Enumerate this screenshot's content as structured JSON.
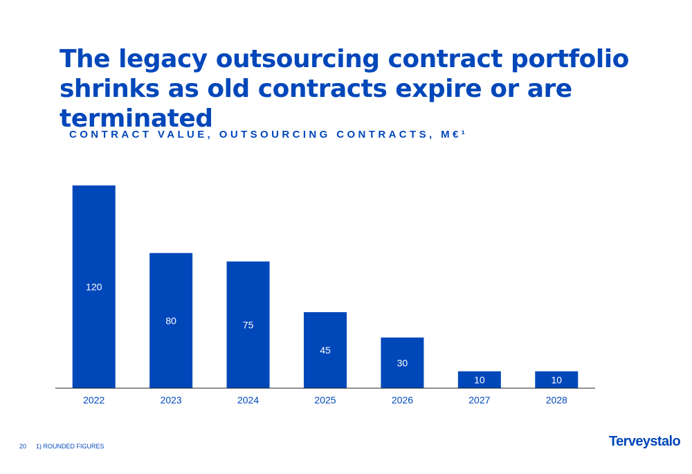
{
  "slide": {
    "title": "The legacy outsourcing contract portfolio shrinks as old contracts expire or are terminated",
    "subtitle": "CONTRACT VALUE, OUTSOURCING CONTRACTS, M€¹",
    "page_number": "20",
    "footnote": "1) ROUNDED FIGURES",
    "brand": "Terveystalo"
  },
  "colors": {
    "bar": "#0047ba",
    "text": "#0047ba",
    "bar_label": "#ffffff",
    "axis_label": "#0047ba",
    "axis_line": "#222222"
  },
  "chart_data": {
    "type": "bar",
    "title": "CONTRACT VALUE, OUTSOURCING CONTRACTS, M€¹",
    "xlabel": "",
    "ylabel": "",
    "categories": [
      "2022",
      "2023",
      "2024",
      "2025",
      "2026",
      "2027",
      "2028"
    ],
    "values": [
      120,
      80,
      75,
      45,
      30,
      10,
      10
    ],
    "ylim": [
      0,
      120
    ],
    "grid": false,
    "data_labels": true
  }
}
